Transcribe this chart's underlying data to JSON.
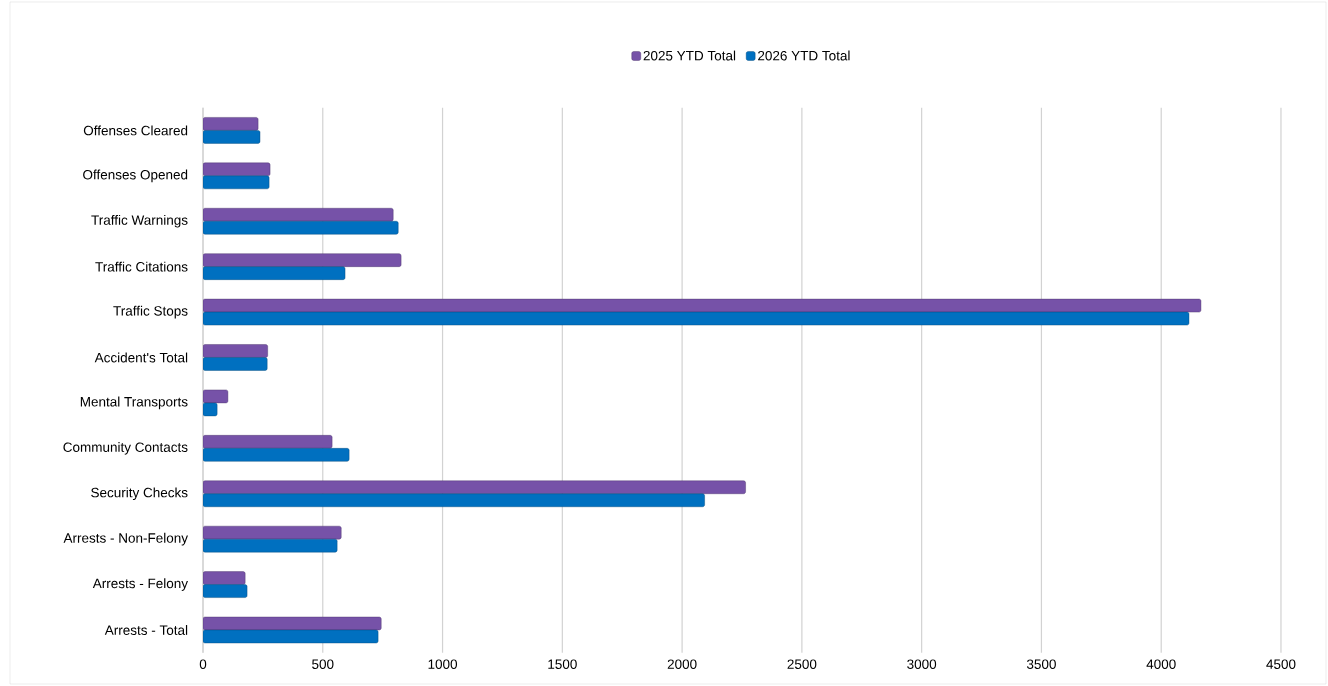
{
  "chart_data": {
    "type": "bar",
    "orientation": "horizontal",
    "categories": [
      "Offenses Cleared",
      "Offenses Opened",
      "Traffic Warnings",
      "Traffic Citations",
      "Traffic Stops",
      "Accident's Total",
      "Mental Transports",
      "Community Contacts",
      "Security Checks",
      "Arrests - Non-Felony",
      "Arrests - Felony",
      "Arrests - Total"
    ],
    "series": [
      {
        "name": "2025 YTD Total",
        "color": "#7652a8",
        "values": [
          230,
          280,
          794,
          827,
          4166,
          270,
          104,
          539,
          2265,
          577,
          176,
          744
        ]
      },
      {
        "name": "2026 YTD Total",
        "color": "#0070c0",
        "values": [
          238,
          276,
          815,
          593,
          4116,
          268,
          59,
          610,
          2094,
          560,
          184,
          731
        ]
      }
    ],
    "xlim": [
      0,
      4500
    ],
    "xticks": [
      0,
      500,
      1000,
      1500,
      2000,
      2500,
      3000,
      3500,
      4000,
      4500
    ],
    "grid": "x",
    "legend": "top"
  }
}
